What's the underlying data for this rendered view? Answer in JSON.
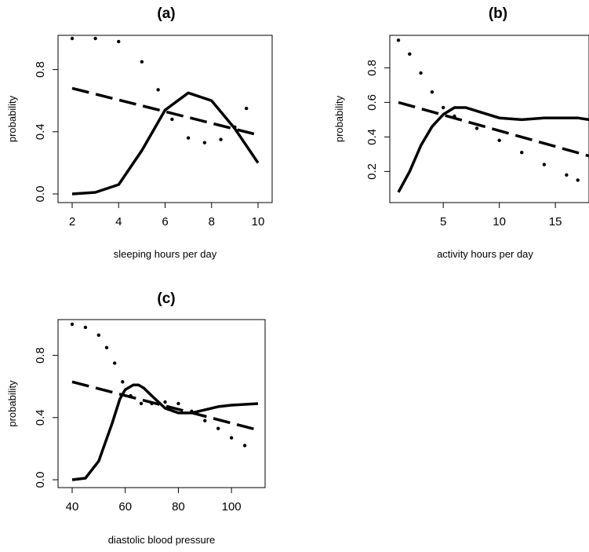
{
  "chart_data": [
    {
      "type": "line",
      "title": "(a)",
      "xlabel": "sleeping hours per day",
      "ylabel": "probability",
      "xlim": [
        2,
        10
      ],
      "ylim": [
        0,
        1
      ],
      "xticks": [
        2,
        4,
        6,
        8,
        10
      ],
      "yticks": [
        0.0,
        0.4,
        0.8
      ],
      "ytick_labels": [
        "0.0",
        "0.4",
        "0.8"
      ],
      "series": [
        {
          "style": "solid",
          "x": [
            2,
            3,
            4,
            5,
            6,
            7,
            8,
            9,
            10
          ],
          "y": [
            0.0,
            0.01,
            0.06,
            0.28,
            0.54,
            0.65,
            0.6,
            0.42,
            0.2
          ]
        },
        {
          "style": "dashed",
          "x": [
            2,
            10
          ],
          "y": [
            0.68,
            0.38
          ]
        },
        {
          "style": "dotted",
          "x": [
            2,
            3,
            4,
            5,
            5.7,
            6.3,
            7,
            7.7,
            8.4,
            9,
            9.5
          ],
          "y": [
            1.0,
            1.0,
            0.98,
            0.85,
            0.67,
            0.48,
            0.36,
            0.33,
            0.35,
            0.43,
            0.55
          ]
        }
      ]
    },
    {
      "type": "line",
      "title": "(b)",
      "xlabel": "activity hours per day",
      "ylabel": "probability",
      "xlim": [
        1,
        18
      ],
      "ylim": [
        0.07,
        0.97
      ],
      "xticks": [
        5,
        10,
        15
      ],
      "yticks": [
        0.2,
        0.4,
        0.6,
        0.8
      ],
      "ytick_labels": [
        "0.2",
        "0.4",
        "0.6",
        "0.8"
      ],
      "series": [
        {
          "style": "solid",
          "x": [
            1,
            2,
            3,
            4,
            5,
            6,
            7,
            8,
            9,
            10,
            12,
            14,
            16,
            17,
            18
          ],
          "y": [
            0.08,
            0.2,
            0.35,
            0.46,
            0.53,
            0.57,
            0.57,
            0.55,
            0.53,
            0.51,
            0.5,
            0.51,
            0.51,
            0.51,
            0.5
          ]
        },
        {
          "style": "dashed",
          "x": [
            1,
            18
          ],
          "y": [
            0.6,
            0.29
          ]
        },
        {
          "style": "dotted",
          "x": [
            1,
            2,
            3,
            4,
            5,
            6,
            8,
            10,
            12,
            14,
            16,
            17
          ],
          "y": [
            0.96,
            0.88,
            0.77,
            0.66,
            0.57,
            0.52,
            0.45,
            0.38,
            0.31,
            0.24,
            0.18,
            0.15
          ]
        }
      ]
    },
    {
      "type": "line",
      "title": "(c)",
      "xlabel": "diastolic blood pressure",
      "ylabel": "probability",
      "xlim": [
        40,
        110
      ],
      "ylim": [
        0,
        1
      ],
      "xticks": [
        40,
        60,
        80,
        100
      ],
      "yticks": [
        0.0,
        0.4,
        0.8
      ],
      "ytick_labels": [
        "0.0",
        "0.4",
        "0.8"
      ],
      "series": [
        {
          "style": "solid",
          "x": [
            40,
            45,
            50,
            55,
            58,
            60,
            63,
            65,
            67,
            70,
            75,
            80,
            85,
            90,
            95,
            100,
            110
          ],
          "y": [
            0.0,
            0.01,
            0.12,
            0.36,
            0.52,
            0.58,
            0.61,
            0.61,
            0.59,
            0.54,
            0.46,
            0.43,
            0.43,
            0.45,
            0.47,
            0.48,
            0.49
          ]
        },
        {
          "style": "dashed",
          "x": [
            40,
            110
          ],
          "y": [
            0.63,
            0.32
          ]
        },
        {
          "style": "dotted",
          "x": [
            40,
            45,
            50,
            53,
            56,
            59,
            62,
            66,
            70,
            75,
            80,
            85,
            90,
            95,
            100,
            105
          ],
          "y": [
            1.0,
            0.98,
            0.93,
            0.85,
            0.75,
            0.63,
            0.54,
            0.49,
            0.49,
            0.5,
            0.49,
            0.44,
            0.38,
            0.33,
            0.27,
            0.22
          ]
        }
      ]
    }
  ]
}
